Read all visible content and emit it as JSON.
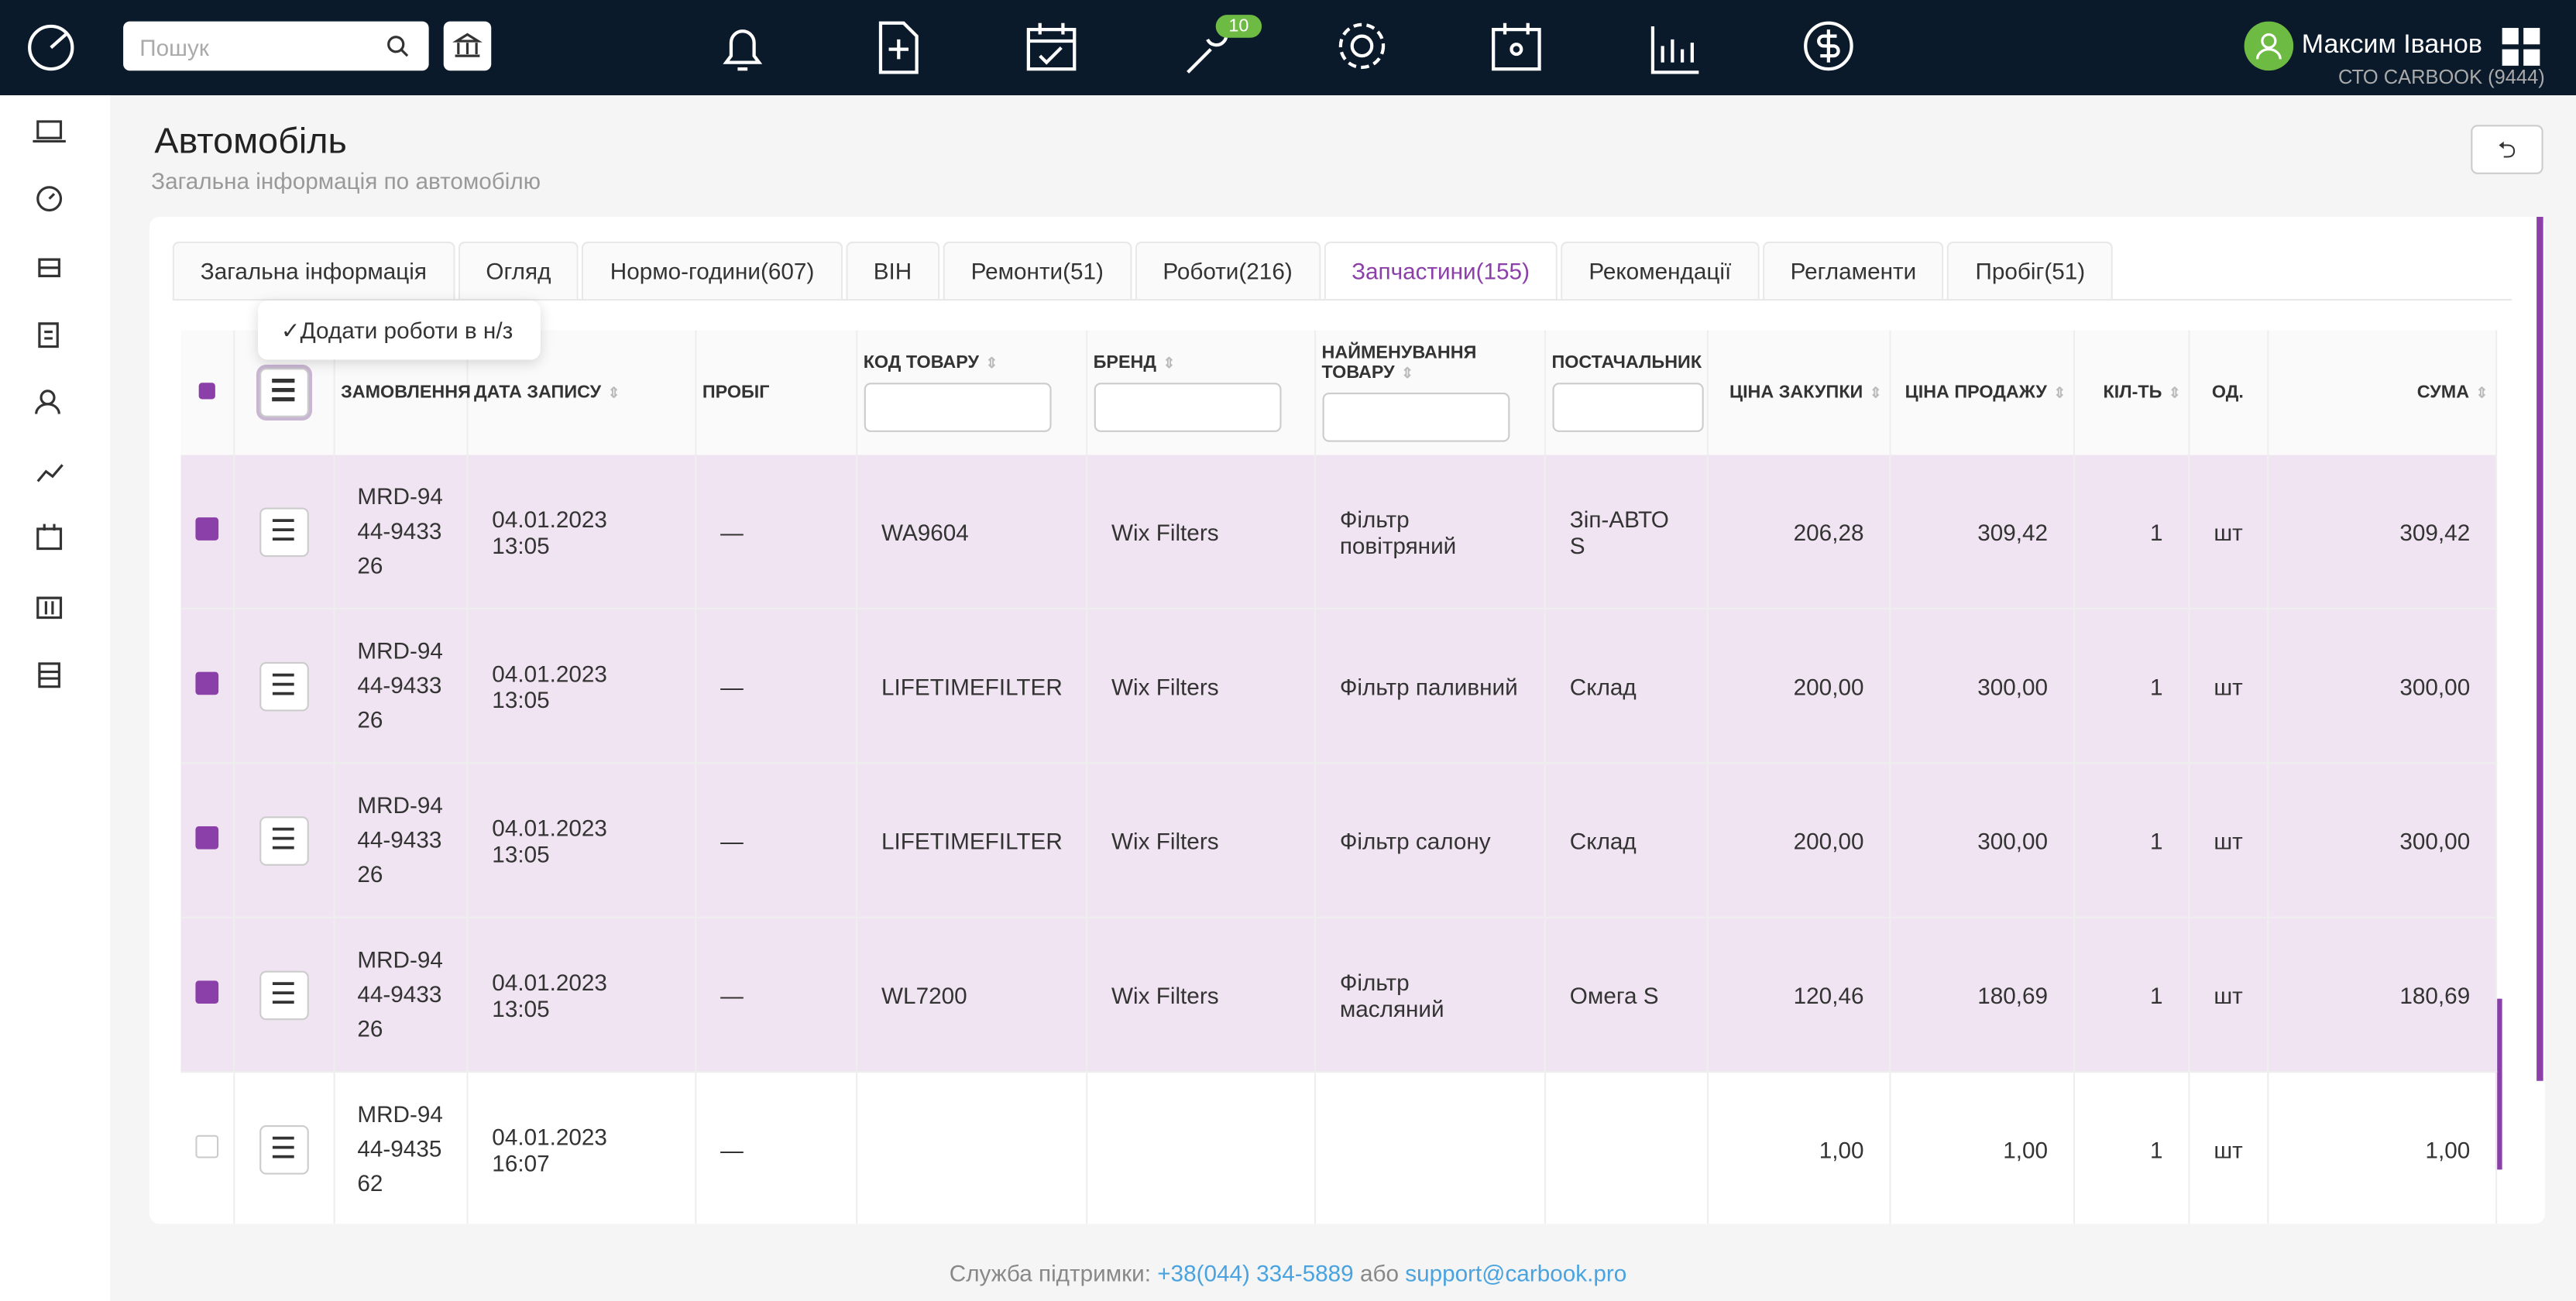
{
  "header": {
    "search_placeholder": "Пошук",
    "badge": "10",
    "user_name": "Максим Іванов",
    "company": "СТО CARBOOK (9444)"
  },
  "page": {
    "title": "Автомобіль",
    "subtitle": "Загальна інформація по автомобілю"
  },
  "tabs": [
    "Загальна інформація",
    "Огляд",
    "Нормо-години(607)",
    "ВІН",
    "Ремонти(51)",
    "Роботи(216)",
    "Запчастини(155)",
    "Рекомендації",
    "Регламенти",
    "Пробіг(51)"
  ],
  "dropdown": "Додати роботи в н/з",
  "table": {
    "headers": [
      "ЗАМОВЛЕННЯ",
      "ДАТА ЗАПИСУ",
      "ПРОБІГ",
      "КОД ТОВАРУ",
      "БРЕНД",
      "НАЙМЕНУВАННЯ ТОВАРУ",
      "ПОСТАЧАЛЬНИК",
      "ЦІНА ЗАКУПКИ",
      "ЦІНА ПРОДАЖУ",
      "КІЛ-ТЬ",
      "ОД.",
      "СУМА"
    ],
    "rows": [
      {
        "checked": true,
        "cells": [
          "MRD-9444-943326",
          "04.01.2023 13:05",
          "—",
          "WA9604",
          "Wix Filters",
          "Фільтр повітряний",
          "Зіп-АВТО S",
          "206,28",
          "309,42",
          "1",
          "шт",
          "309,42"
        ]
      },
      {
        "checked": true,
        "cells": [
          "MRD-9444-943326",
          "04.01.2023 13:05",
          "—",
          "LIFETIMEFILTER",
          "Wix Filters",
          "Фільтр паливний",
          "Склад",
          "200,00",
          "300,00",
          "1",
          "шт",
          "300,00"
        ]
      },
      {
        "checked": true,
        "cells": [
          "MRD-9444-943326",
          "04.01.2023 13:05",
          "—",
          "LIFETIMEFILTER",
          "Wix Filters",
          "Фільтр салону",
          "Склад",
          "200,00",
          "300,00",
          "1",
          "шт",
          "300,00"
        ]
      },
      {
        "checked": true,
        "cells": [
          "MRD-9444-943326",
          "04.01.2023 13:05",
          "—",
          "WL7200",
          "Wix Filters",
          "Фільтр масляний",
          "Омега S",
          "120,46",
          "180,69",
          "1",
          "шт",
          "180,69"
        ]
      },
      {
        "checked": false,
        "cells": [
          "MRD-9444-943562",
          "04.01.2023 16:07",
          "—",
          "",
          "",
          "",
          "",
          "1,00",
          "1,00",
          "1",
          "шт",
          "1,00"
        ]
      }
    ]
  },
  "footer": {
    "label": "Служба підтримки:",
    "phone": "+38(044) 334-5889",
    "connector": "або",
    "email": "support@carbook.pro"
  }
}
